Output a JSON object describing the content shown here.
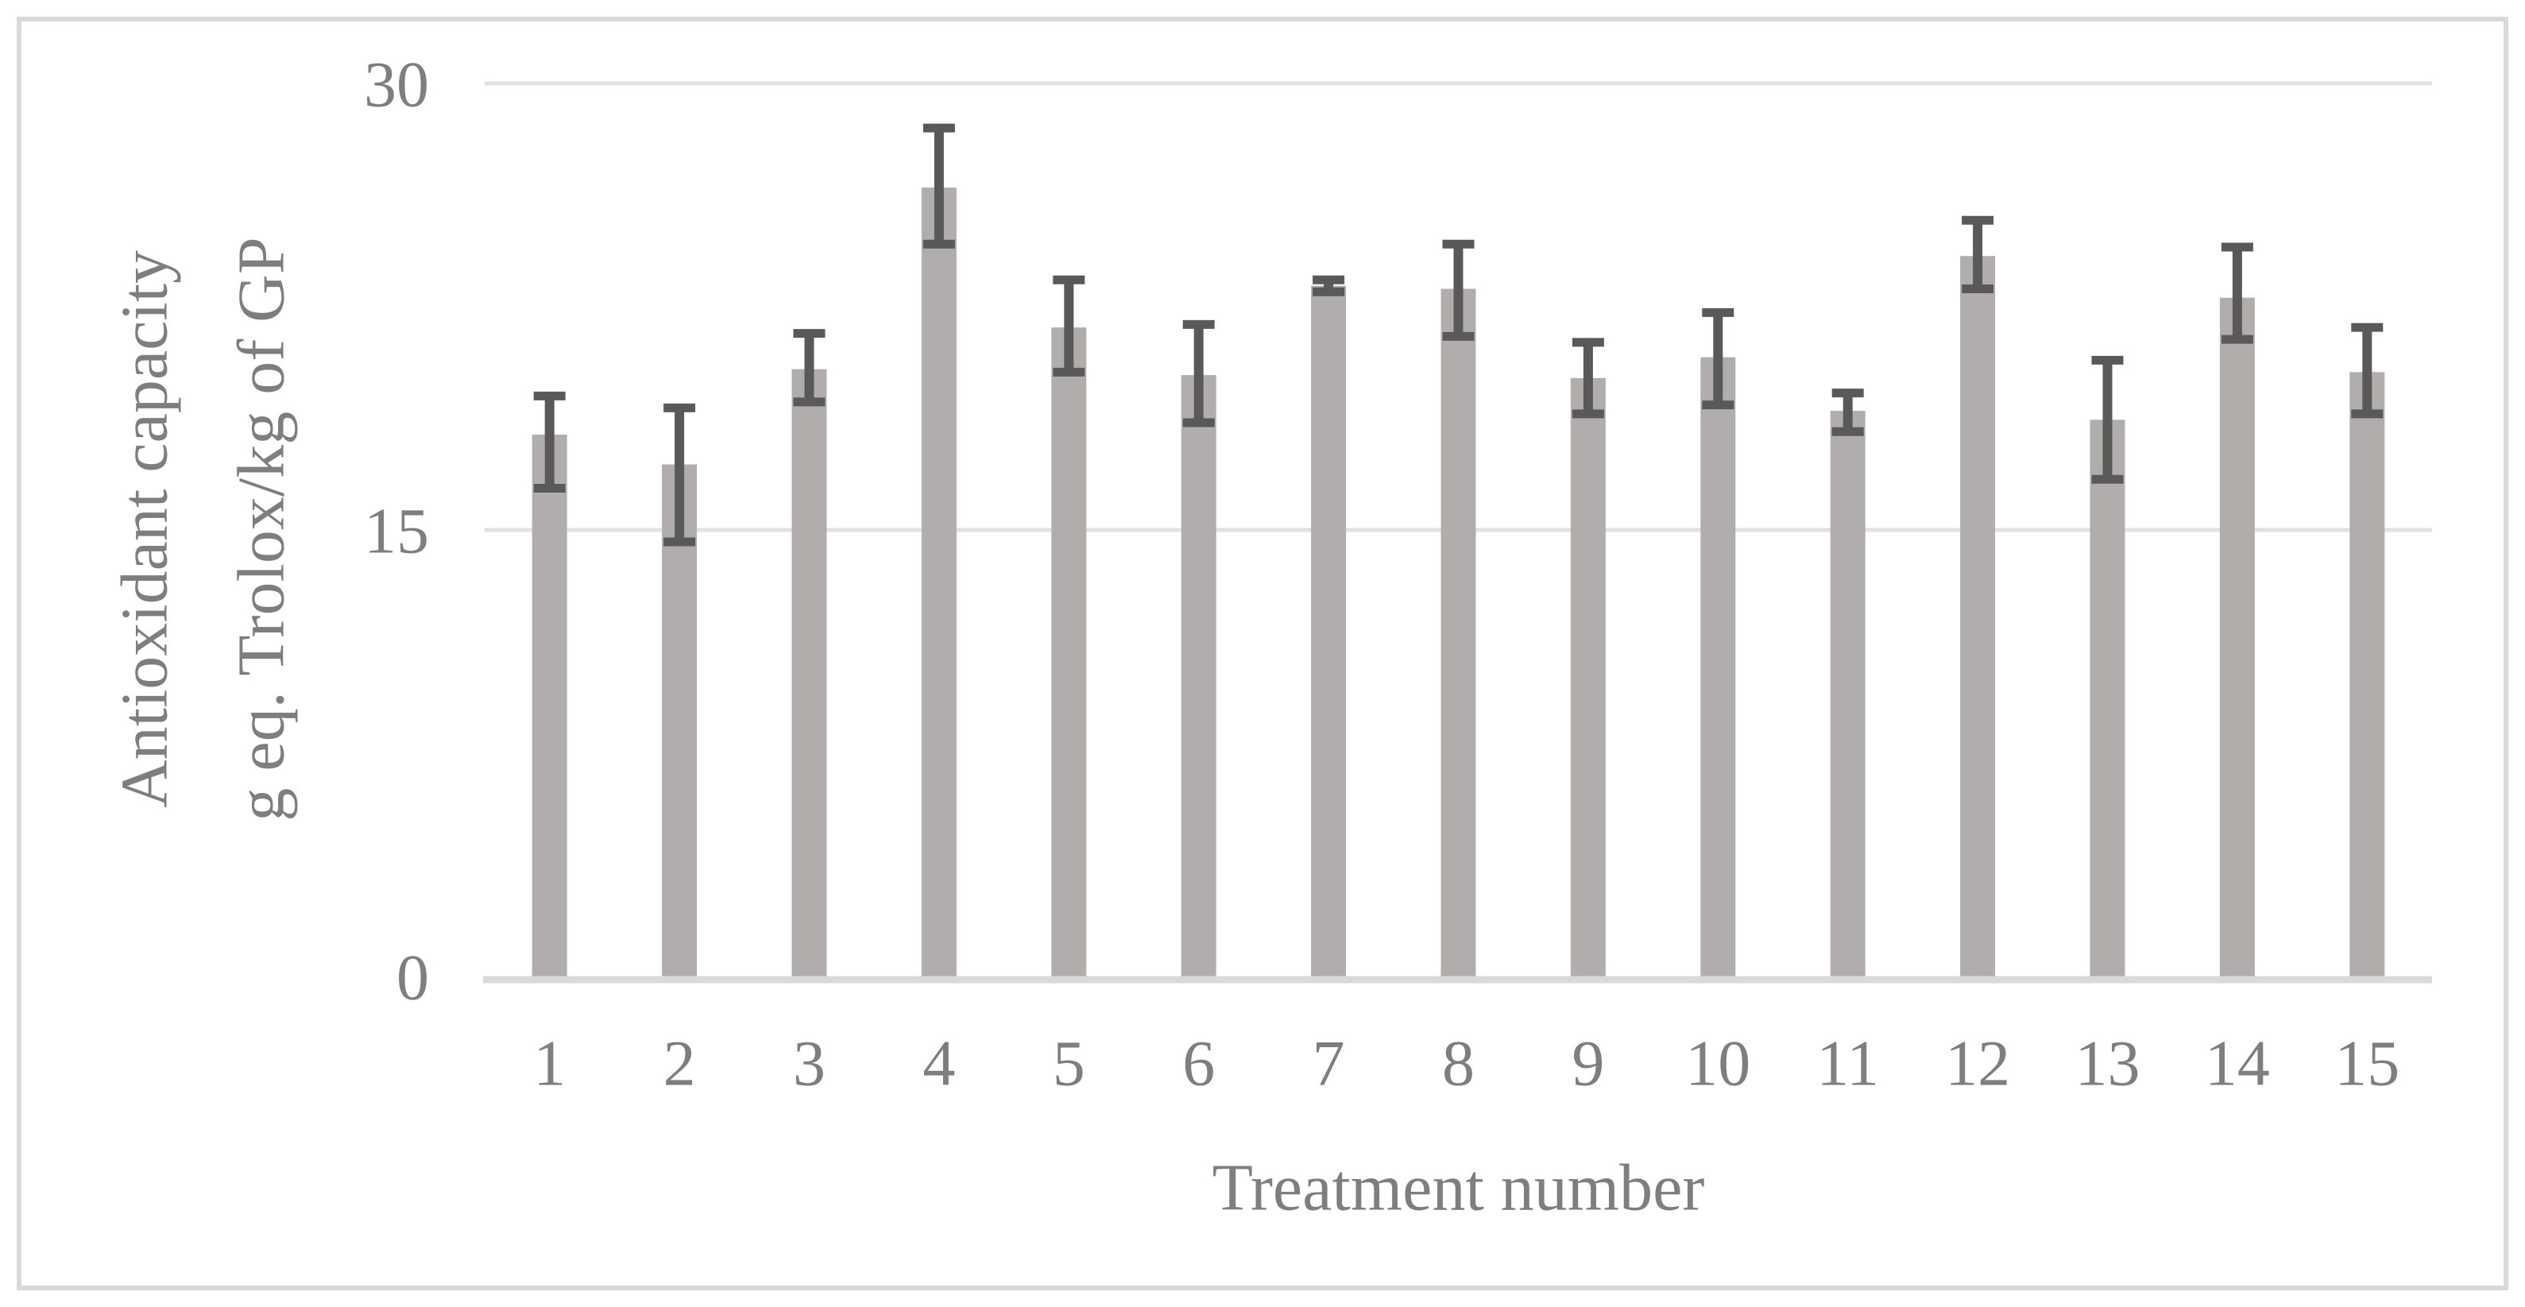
{
  "figure": {
    "kind": "excel-style bar chart with error bars",
    "background_color": "#ffffff",
    "border_color": "#d9d9d9",
    "text_color": "#7e7e7e"
  },
  "chart_data": {
    "type": "bar",
    "title": "",
    "xlabel": "Treatment number",
    "ylabel_line1": "Antioxidant capacity",
    "ylabel_line2": "g eq. Trolox/kg of GP",
    "categories": [
      "1",
      "2",
      "3",
      "4",
      "5",
      "6",
      "7",
      "8",
      "9",
      "10",
      "11",
      "12",
      "13",
      "14",
      "15"
    ],
    "values": [
      18.2,
      17.2,
      20.4,
      26.5,
      21.8,
      20.2,
      23.2,
      23.1,
      20.1,
      20.8,
      19.0,
      24.2,
      18.7,
      22.8,
      20.3
    ],
    "error_high": [
      19.5,
      19.1,
      21.6,
      28.5,
      23.4,
      21.9,
      23.4,
      24.6,
      21.3,
      22.3,
      19.6,
      25.4,
      20.7,
      24.5,
      21.8
    ],
    "error_low": [
      16.4,
      14.6,
      19.3,
      24.6,
      20.3,
      18.6,
      23.0,
      21.5,
      18.9,
      19.2,
      18.3,
      23.1,
      16.7,
      21.4,
      18.9
    ],
    "ylim": [
      0,
      30
    ],
    "yticks": [
      0,
      15,
      30
    ],
    "grid": "horizontal",
    "legend_position": "none",
    "bar_color": "#b1adad",
    "error_bar_color": "#595959",
    "gridline_color": "#e1e1e1",
    "axis_line_color": "#d9d9d9",
    "label_color": "#7e7e7e"
  }
}
